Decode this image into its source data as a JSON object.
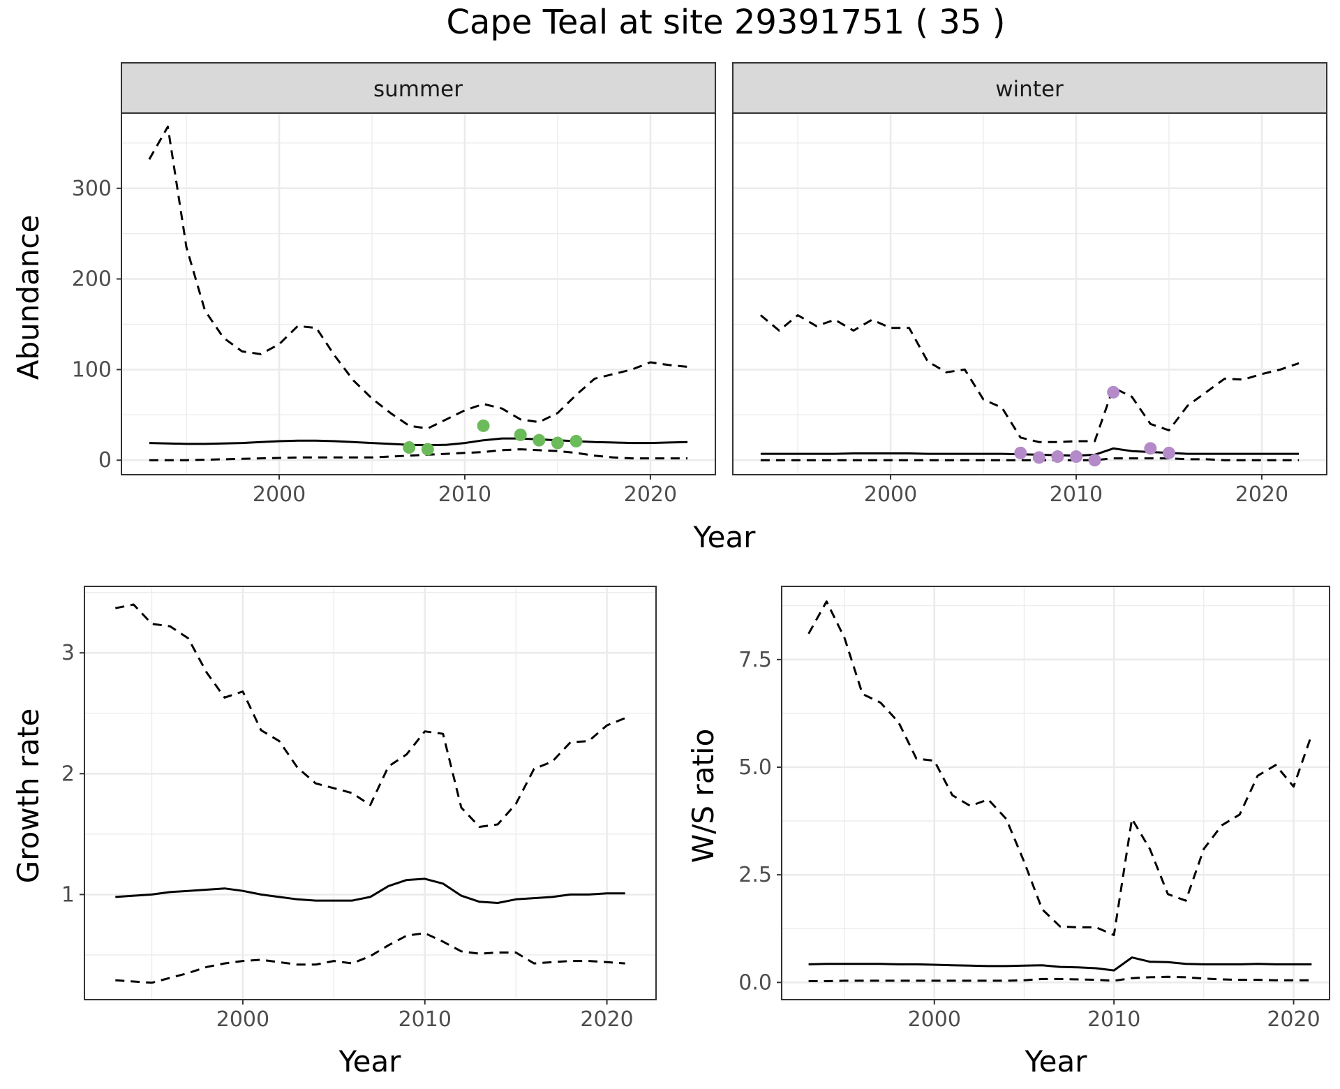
{
  "title": "Cape Teal at site 29391751 ( 35 )",
  "colors": {
    "summer_points": "#6cbb5a",
    "winter_points": "#b48ac8",
    "strip_bg": "#d9d9d9",
    "grid": "#ebebeb",
    "line": "#000000"
  },
  "chart_data": [
    {
      "id": "abundance",
      "type": "line",
      "ylabel": "Abundance",
      "xlabel": "Year",
      "xlim": [
        1991.5,
        2023.5
      ],
      "ylim": [
        -16,
        383
      ],
      "xticks": [
        2000,
        2010,
        2020
      ],
      "yticks": [
        0,
        100,
        200,
        300
      ],
      "facets": [
        {
          "label": "summer",
          "x": [
            1993,
            1994,
            1995,
            1996,
            1997,
            1998,
            1999,
            2000,
            2001,
            2002,
            2003,
            2004,
            2005,
            2006,
            2007,
            2008,
            2009,
            2010,
            2011,
            2012,
            2013,
            2014,
            2015,
            2016,
            2017,
            2018,
            2019,
            2020,
            2021,
            2022
          ],
          "series": [
            {
              "name": "mean",
              "style": "solid",
              "values": [
                19,
                18.5,
                18,
                18,
                18.5,
                19,
                20,
                21,
                21.5,
                21.5,
                21,
                20,
                19,
                18,
                17,
                16.5,
                17,
                19,
                22,
                24,
                24,
                23,
                22,
                21,
                20,
                19.5,
                19,
                19,
                19.5,
                20
              ]
            },
            {
              "name": "upper",
              "style": "dashed",
              "values": [
                332,
                368,
                235,
                165,
                135,
                120,
                117,
                128,
                148,
                146,
                115,
                88,
                68,
                52,
                38,
                35,
                45,
                55,
                62,
                57,
                45,
                42,
                52,
                72,
                90,
                95,
                100,
                108,
                105,
                103
              ]
            },
            {
              "name": "lower",
              "style": "dashed",
              "values": [
                0,
                0,
                0,
                0.5,
                1,
                1.5,
                2,
                2.5,
                3,
                3,
                3,
                3,
                3,
                4,
                5,
                6,
                7,
                8,
                9,
                11,
                12,
                11,
                10,
                8,
                5,
                3,
                2,
                2,
                2,
                2
              ]
            }
          ],
          "points": {
            "x": [
              2007,
              2008,
              2011,
              2013,
              2014,
              2015,
              2016
            ],
            "values": [
              14,
              12,
              38,
              28,
              22,
              19,
              21
            ]
          }
        },
        {
          "label": "winter",
          "x": [
            1993,
            1994,
            1995,
            1996,
            1997,
            1998,
            1999,
            2000,
            2001,
            2002,
            2003,
            2004,
            2005,
            2006,
            2007,
            2008,
            2009,
            2010,
            2011,
            2012,
            2013,
            2014,
            2015,
            2016,
            2017,
            2018,
            2019,
            2020,
            2021,
            2022
          ],
          "series": [
            {
              "name": "mean",
              "style": "solid",
              "values": [
                7,
                7,
                7,
                7,
                7,
                7.5,
                7.5,
                7.5,
                7.5,
                7,
                7,
                7,
                7,
                7,
                6.5,
                6,
                5.5,
                5,
                6,
                13,
                10,
                9,
                8,
                7,
                7,
                7,
                7,
                7,
                7,
                7
              ]
            },
            {
              "name": "upper",
              "style": "dashed",
              "values": [
                160,
                143,
                160,
                148,
                155,
                143,
                155,
                146,
                146,
                109,
                97,
                100,
                67,
                58,
                25,
                20,
                20,
                21,
                21,
                80,
                70,
                40,
                33,
                60,
                75,
                90,
                89,
                95,
                100,
                107
              ]
            },
            {
              "name": "lower",
              "style": "dashed",
              "values": [
                0,
                0,
                0,
                0,
                0,
                0,
                0,
                0,
                0,
                0,
                0,
                0,
                0,
                0,
                0,
                0,
                0,
                0,
                0,
                2,
                2,
                2,
                2,
                1,
                1,
                0,
                0,
                0,
                0,
                0
              ]
            }
          ],
          "points": {
            "x": [
              2007,
              2008,
              2009,
              2010,
              2011,
              2012,
              2014,
              2015
            ],
            "values": [
              8,
              3,
              4,
              4,
              0,
              75,
              13,
              8
            ]
          }
        }
      ]
    },
    {
      "id": "growth",
      "type": "line",
      "ylabel": "Growth rate",
      "xlabel": "Year",
      "xlim": [
        1991.3,
        2022.7
      ],
      "ylim": [
        0.13,
        3.55
      ],
      "xticks": [
        2000,
        2010,
        2020
      ],
      "yticks": [
        1,
        2,
        3
      ],
      "x": [
        1993,
        1994,
        1995,
        1996,
        1997,
        1998,
        1999,
        2000,
        2001,
        2002,
        2003,
        2004,
        2005,
        2006,
        2007,
        2008,
        2009,
        2010,
        2011,
        2012,
        2013,
        2014,
        2015,
        2016,
        2017,
        2018,
        2019,
        2020,
        2021
      ],
      "series": [
        {
          "name": "mean",
          "style": "solid",
          "values": [
            0.98,
            0.99,
            1.0,
            1.02,
            1.03,
            1.04,
            1.05,
            1.03,
            1.0,
            0.98,
            0.96,
            0.95,
            0.95,
            0.95,
            0.98,
            1.07,
            1.12,
            1.13,
            1.09,
            0.99,
            0.94,
            0.93,
            0.96,
            0.97,
            0.98,
            1.0,
            1.0,
            1.01,
            1.01
          ]
        },
        {
          "name": "upper",
          "style": "dashed",
          "values": [
            3.37,
            3.4,
            3.24,
            3.22,
            3.12,
            2.84,
            2.63,
            2.68,
            2.36,
            2.27,
            2.05,
            1.92,
            1.88,
            1.84,
            1.74,
            2.06,
            2.16,
            2.35,
            2.33,
            1.72,
            1.56,
            1.58,
            1.75,
            2.04,
            2.1,
            2.26,
            2.27,
            2.4,
            2.46
          ]
        },
        {
          "name": "lower",
          "style": "dashed",
          "values": [
            0.29,
            0.28,
            0.27,
            0.31,
            0.35,
            0.4,
            0.43,
            0.45,
            0.46,
            0.44,
            0.42,
            0.42,
            0.45,
            0.43,
            0.49,
            0.58,
            0.66,
            0.68,
            0.61,
            0.53,
            0.51,
            0.52,
            0.52,
            0.43,
            0.44,
            0.45,
            0.45,
            0.44,
            0.43
          ]
        }
      ]
    },
    {
      "id": "ws_ratio",
      "type": "line",
      "ylabel": "W/S ratio",
      "xlabel": "Year",
      "xlim": [
        1991.5,
        2022.0
      ],
      "ylim": [
        -0.4,
        9.2
      ],
      "xticks": [
        2000,
        2010,
        2020
      ],
      "yticks": [
        0.0,
        2.5,
        5.0,
        7.5
      ],
      "ytick_labels": [
        "0.0",
        "2.5",
        "5.0",
        "7.5"
      ],
      "x": [
        1993,
        1994,
        1995,
        1996,
        1997,
        1998,
        1999,
        2000,
        2001,
        2002,
        2003,
        2004,
        2005,
        2006,
        2007,
        2008,
        2009,
        2010,
        2011,
        2012,
        2013,
        2014,
        2015,
        2016,
        2017,
        2018,
        2019,
        2020,
        2021
      ],
      "series": [
        {
          "name": "mean",
          "style": "solid",
          "values": [
            0.42,
            0.43,
            0.43,
            0.43,
            0.43,
            0.42,
            0.42,
            0.41,
            0.4,
            0.39,
            0.38,
            0.38,
            0.39,
            0.4,
            0.36,
            0.35,
            0.33,
            0.28,
            0.58,
            0.48,
            0.47,
            0.43,
            0.42,
            0.42,
            0.42,
            0.43,
            0.42,
            0.42,
            0.42
          ]
        },
        {
          "name": "upper",
          "style": "dashed",
          "values": [
            8.1,
            8.85,
            8.0,
            6.7,
            6.5,
            6.05,
            5.2,
            5.15,
            4.35,
            4.1,
            4.25,
            3.8,
            2.8,
            1.7,
            1.3,
            1.28,
            1.28,
            1.1,
            3.8,
            3.1,
            2.05,
            1.9,
            3.1,
            3.65,
            3.9,
            4.8,
            5.05,
            4.55,
            5.75
          ]
        },
        {
          "name": "lower",
          "style": "dashed",
          "values": [
            0.03,
            0.03,
            0.04,
            0.04,
            0.04,
            0.04,
            0.04,
            0.04,
            0.04,
            0.04,
            0.04,
            0.04,
            0.05,
            0.08,
            0.08,
            0.07,
            0.06,
            0.04,
            0.1,
            0.12,
            0.13,
            0.12,
            0.09,
            0.07,
            0.06,
            0.06,
            0.05,
            0.05,
            0.05
          ]
        }
      ]
    }
  ]
}
